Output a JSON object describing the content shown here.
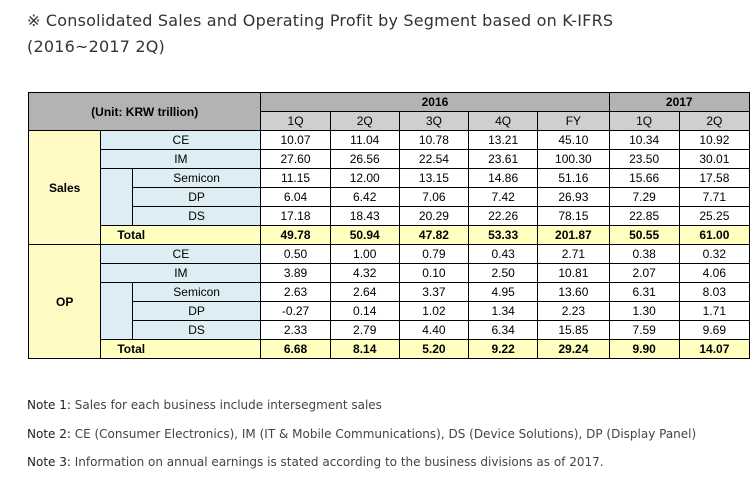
{
  "title_line1": "※ Consolidated Sales and Operating Profit by Segment based on K-IFRS",
  "title_line2": "(2016~2017 2Q)",
  "table": {
    "unit": "(Unit: KRW trillion)",
    "year_2016": "2016",
    "year_2017": "2017",
    "columns": [
      "1Q",
      "2Q",
      "3Q",
      "4Q",
      "FY",
      "1Q",
      "2Q"
    ],
    "sales_label": "Sales",
    "op_label": "OP",
    "sales_rows": [
      {
        "label": "CE",
        "values": [
          "10.07",
          "11.04",
          "10.78",
          "13.21",
          "45.10",
          "10.34",
          "10.92"
        ]
      },
      {
        "label": "IM",
        "values": [
          "27.60",
          "26.56",
          "22.54",
          "23.61",
          "100.30",
          "23.50",
          "30.01"
        ]
      },
      {
        "label": "Semicon",
        "values": [
          "11.15",
          "12.00",
          "13.15",
          "14.86",
          "51.16",
          "15.66",
          "17.58"
        ]
      },
      {
        "label": "DP",
        "values": [
          "6.04",
          "6.42",
          "7.06",
          "7.42",
          "26.93",
          "7.29",
          "7.71"
        ]
      },
      {
        "label": "DS",
        "values": [
          "17.18",
          "18.43",
          "20.29",
          "22.26",
          "78.15",
          "22.85",
          "25.25"
        ]
      },
      {
        "label": "Total",
        "values": [
          "49.78",
          "50.94",
          "47.82",
          "53.33",
          "201.87",
          "50.55",
          "61.00"
        ]
      }
    ],
    "op_rows": [
      {
        "label": "CE",
        "values": [
          "0.50",
          "1.00",
          "0.79",
          "0.43",
          "2.71",
          "0.38",
          "0.32"
        ]
      },
      {
        "label": "IM",
        "values": [
          "3.89",
          "4.32",
          "0.10",
          "2.50",
          "10.81",
          "2.07",
          "4.06"
        ]
      },
      {
        "label": "Semicon",
        "values": [
          "2.63",
          "2.64",
          "3.37",
          "4.95",
          "13.60",
          "6.31",
          "8.03"
        ]
      },
      {
        "label": "DP",
        "values": [
          "-0.27",
          "0.14",
          "1.02",
          "1.34",
          "2.23",
          "1.30",
          "1.71"
        ]
      },
      {
        "label": "DS",
        "values": [
          "2.33",
          "2.79",
          "4.40",
          "6.34",
          "15.85",
          "7.59",
          "9.69"
        ]
      },
      {
        "label": "Total",
        "values": [
          "6.68",
          "8.14",
          "5.20",
          "9.22",
          "29.24",
          "9.90",
          "14.07"
        ]
      }
    ]
  },
  "notes": [
    {
      "label": "Note 1:",
      "text": " Sales for each business include intersegment sales"
    },
    {
      "label": "Note 2:",
      "text": " CE (Consumer Electronics), IM (IT & Mobile Communications), DS (Device Solutions), DP (Display Panel)"
    },
    {
      "label": "Note 3:",
      "text": " Information on annual earnings is stated according to the business divisions as of 2017."
    }
  ]
}
